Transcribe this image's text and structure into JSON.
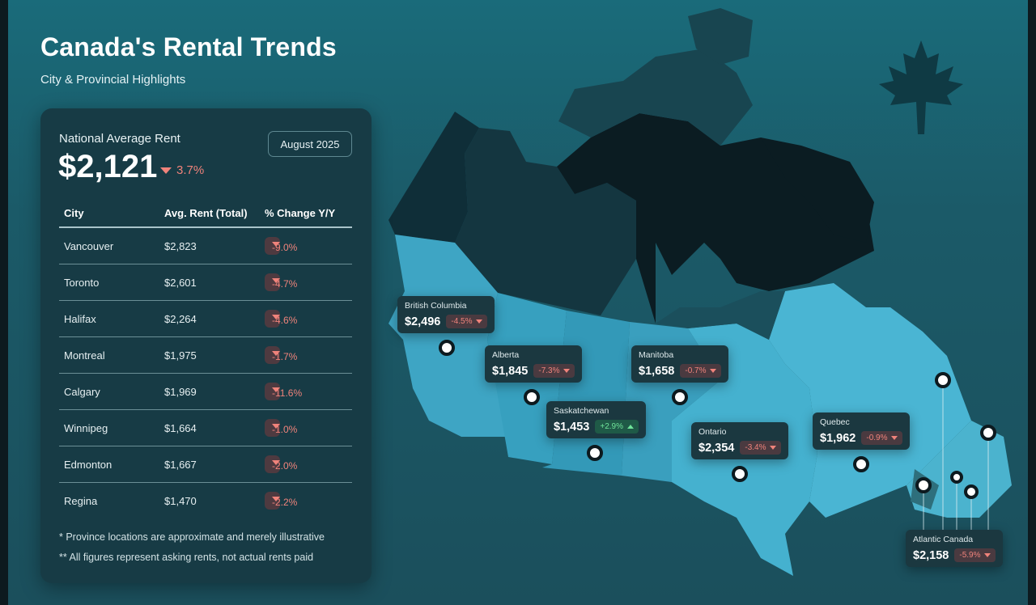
{
  "title": "Canada's Rental Trends",
  "subtitle": "City & Provincial Highlights",
  "national": {
    "label": "National Average Rent",
    "value": "$2,121",
    "change": "3.7%",
    "date": "August 2025"
  },
  "table": {
    "headers": [
      "City",
      "Avg. Rent (Total)",
      "% Change Y/Y"
    ],
    "rows": [
      {
        "city": "Vancouver",
        "rent": "$2,823",
        "change": "-9.0%"
      },
      {
        "city": "Toronto",
        "rent": "$2,601",
        "change": "-4.7%"
      },
      {
        "city": "Halifax",
        "rent": "$2,264",
        "change": "-4.6%"
      },
      {
        "city": "Montreal",
        "rent": "$1,975",
        "change": "-1.7%"
      },
      {
        "city": "Calgary",
        "rent": "$1,969",
        "change": "-11.6%"
      },
      {
        "city": "Winnipeg",
        "rent": "$1,664",
        "change": "-1.0%"
      },
      {
        "city": "Edmonton",
        "rent": "$1,667",
        "change": "-2.0%"
      },
      {
        "city": "Regina",
        "rent": "$1,470",
        "change": "-2.2%"
      }
    ]
  },
  "notes": [
    "* Province locations are approximate and merely illustrative",
    "** All figures represent asking rents, not actual rents paid"
  ],
  "provinces": [
    {
      "name": "British Columbia",
      "rent": "$2,496",
      "change": "-4.5%",
      "direction": "down"
    },
    {
      "name": "Alberta",
      "rent": "$1,845",
      "change": "-7.3%",
      "direction": "down"
    },
    {
      "name": "Saskatchewan",
      "rent": "$1,453",
      "change": "+2.9%",
      "direction": "up"
    },
    {
      "name": "Manitoba",
      "rent": "$1,658",
      "change": "-0.7%",
      "direction": "down"
    },
    {
      "name": "Ontario",
      "rent": "$2,354",
      "change": "-3.4%",
      "direction": "down"
    },
    {
      "name": "Quebec",
      "rent": "$1,962",
      "change": "-0.9%",
      "direction": "down"
    },
    {
      "name": "Atlantic Canada",
      "rent": "$2,158",
      "change": "-5.9%",
      "direction": "down"
    }
  ],
  "colors": {
    "background": "#1b5a68",
    "panel": "#173b45",
    "negative": "#f0837b",
    "positive": "#6fe39a",
    "territories": "#0f2a33",
    "provinces": "#3fa3c2"
  },
  "icons": [
    "maple-leaf-icon",
    "map-pin-icon",
    "caret-down-icon",
    "caret-up-icon"
  ]
}
